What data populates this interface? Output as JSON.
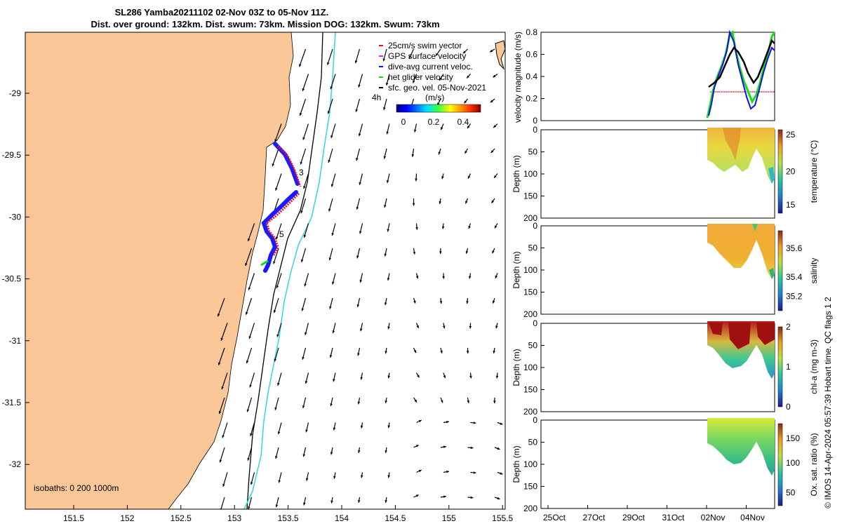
{
  "title": {
    "line1": "SL286 Yamba20211102 02-Nov 03Z to 05-Nov 11Z.",
    "line2": "Dist. over ground: 132km. Dist. swum: 73km. Mission DOG: 132km. Swum: 73km"
  },
  "map": {
    "lon_ticks": [
      "151.5",
      "152",
      "152.5",
      "153",
      "153.5",
      "154",
      "154.5",
      "155",
      "155.5"
    ],
    "lat_ticks": [
      "-29",
      "-29.5",
      "-30",
      "-30.5",
      "-31",
      "-31.5",
      "-32"
    ],
    "legend": [
      {
        "label": "25cm/s swim vector",
        "color": "#e8102a"
      },
      {
        "label": "GPS surface velocity",
        "color": "#e01fe0"
      },
      {
        "label": "dive-avg current veloc.",
        "color": "#1010e8"
      },
      {
        "label": "net glider velocity",
        "color": "#10e010"
      },
      {
        "label": "sfc. geo. vel. 05-Nov-2021",
        "color": "#000000"
      }
    ],
    "colorbar_unit": "(m/s)",
    "colorbar_ticks": [
      "0",
      "0.2",
      "0.4"
    ],
    "timestep_label": "4h",
    "waypoints": [
      "3",
      "5"
    ],
    "isobaths_text": "isobaths: 0   200  1000m",
    "colors": {
      "land": "#fac898",
      "isobath_200": "#000000",
      "isobath_1000": "#33d6e0"
    }
  },
  "chart_data": [
    {
      "type": "line",
      "ylabel": "velocity magnitude (m/s)",
      "ylim": [
        0,
        0.8
      ],
      "yticks": [
        "0",
        "0.2",
        "0.4",
        "0.6",
        "0.8"
      ],
      "series": [
        {
          "values_approx": [
            0.3,
            0.38,
            0.5,
            0.62,
            0.65,
            0.55,
            0.42,
            0.32,
            0.45,
            0.6,
            0.7,
            0.65
          ],
          "color": "#000000"
        },
        {
          "values_approx": [
            0.25,
            0.25,
            0.25,
            0.25,
            0.25,
            0.25,
            0.25,
            0.25,
            0.25,
            0.25,
            0.25,
            0.25
          ],
          "color": "#e8102a"
        },
        {
          "values_approx": [
            0.15,
            0.3,
            0.6,
            0.8,
            0.7,
            0.5,
            0.3,
            0.1,
            0.25,
            0.5,
            0.7,
            0.6
          ],
          "color": "#1010e8"
        },
        {
          "values_approx": [
            0.2,
            0.35,
            0.65,
            0.8,
            0.75,
            0.55,
            0.35,
            0.15,
            0.3,
            0.55,
            0.75,
            0.8
          ],
          "color": "#10e010"
        }
      ]
    },
    {
      "type": "heatmap",
      "ylabel": "Depth (m)",
      "clabel": "temperature (°C)",
      "cticks": [
        "15",
        "20",
        "25"
      ],
      "yticks": [
        "0",
        "50",
        "100",
        "150",
        "200"
      ]
    },
    {
      "type": "heatmap",
      "ylabel": "Depth (m)",
      "clabel": "salinity",
      "cticks": [
        "35.2",
        "35.4",
        "35.6"
      ],
      "yticks": [
        "0",
        "50",
        "100",
        "150",
        "200"
      ]
    },
    {
      "type": "heatmap",
      "ylabel": "Depth (m)",
      "clabel": "chl-a (mg m-3)",
      "cticks": [
        "0",
        "1",
        "2"
      ],
      "yticks": [
        "0",
        "50",
        "100",
        "150",
        "200"
      ]
    },
    {
      "type": "heatmap",
      "ylabel": "Depth (m)",
      "clabel": "Ox. sat. ratio (%)",
      "cticks": [
        "50",
        "100",
        "150"
      ],
      "yticks": [
        "0",
        "50",
        "100",
        "150",
        "200"
      ]
    }
  ],
  "time_axis": [
    "25Oct",
    "27Oct",
    "29Oct",
    "31Oct",
    "02Nov",
    "04Nov"
  ],
  "credit": "© IMOS 14-Apr-2024 05:57:39 Hobart time. QC flags 1  2"
}
